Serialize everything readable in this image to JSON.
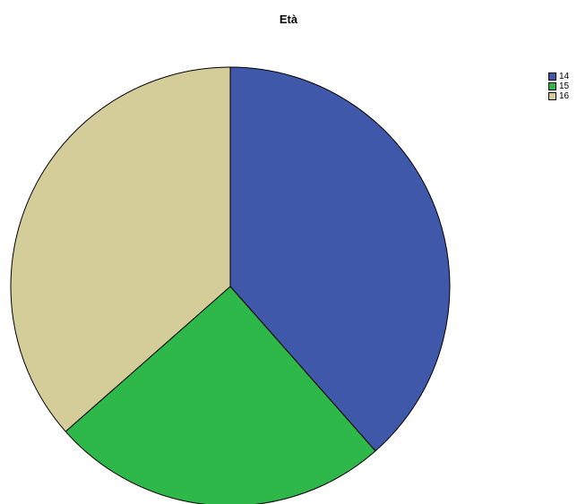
{
  "chart_data": {
    "type": "pie",
    "title": "Età",
    "categories": [
      "14",
      "15",
      "16"
    ],
    "values": [
      38.5,
      25.0,
      36.5
    ],
    "colors": [
      "#3f58aa",
      "#2fb84a",
      "#d4cd99"
    ],
    "start_angle_deg": 0,
    "direction": "clockwise",
    "legend_position": "top-right"
  }
}
